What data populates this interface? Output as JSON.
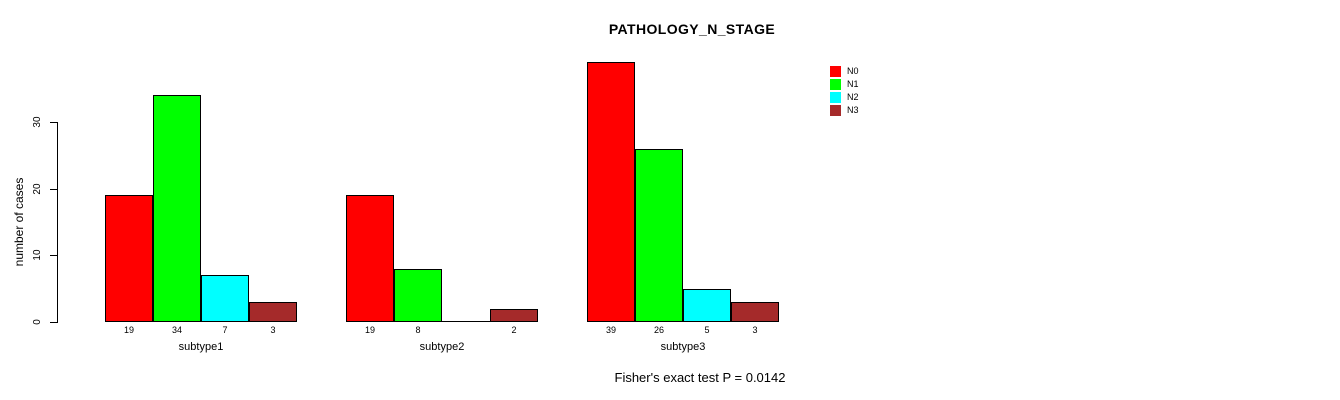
{
  "chart_data": {
    "type": "bar",
    "grouped": true,
    "title": "PATHOLOGY_N_STAGE",
    "ylabel": "number of cases",
    "xlabel": "",
    "categories": [
      "subtype1",
      "subtype2",
      "subtype3"
    ],
    "series": [
      {
        "name": "N0",
        "color": "#FF0000",
        "values": [
          19,
          19,
          39
        ]
      },
      {
        "name": "N1",
        "color": "#00FF00",
        "values": [
          34,
          8,
          26
        ]
      },
      {
        "name": "N2",
        "color": "#00FFFF",
        "values": [
          7,
          0,
          5
        ]
      },
      {
        "name": "N3",
        "color": "#A52A2A",
        "values": [
          3,
          2,
          3
        ]
      }
    ],
    "bar_value_labels": [
      [
        19,
        34,
        7,
        3
      ],
      [
        19,
        8,
        null,
        2
      ],
      [
        39,
        26,
        5,
        3
      ]
    ],
    "yticks": [
      0,
      10,
      20,
      30
    ],
    "ylim": [
      0,
      39
    ],
    "grid": false,
    "legend_position": "top-right",
    "annotation": "Fisher's exact test P = 0.0142"
  }
}
